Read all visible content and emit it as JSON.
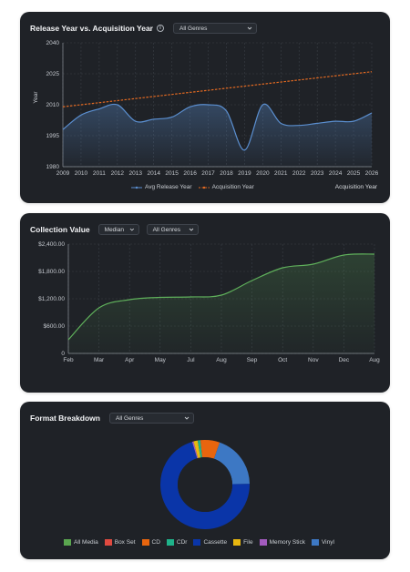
{
  "card1": {
    "title": "Release Year vs. Acquisition Year",
    "genre_select": "All Genres",
    "info_icon": "info-icon",
    "xlabel": "Acquisition Year",
    "ylabel": "Year",
    "legend": [
      "Avg Release Year",
      "Acquisition Year"
    ]
  },
  "card2": {
    "title": "Collection Value",
    "stat_select": "Median",
    "genre_select": "All Genres"
  },
  "card3": {
    "title": "Format Breakdown",
    "genre_select": "All Genres",
    "legend": [
      "All Media",
      "Box Set",
      "CD",
      "CDr",
      "Cassette",
      "File",
      "Memory Stick",
      "Vinyl"
    ]
  },
  "colors": {
    "card_bg": "#1f2227",
    "blue_line": "#5b8fd0",
    "orange_line": "#e36a22",
    "green_line": "#5fb05b",
    "All Media": "#5aa64f",
    "Box Set": "#e04a40",
    "CD": "#e8650e",
    "CDr": "#1fb28a",
    "Cassette": "#0a35a8",
    "File": "#e8b710",
    "Memory Stick": "#a35bbf",
    "Vinyl": "#3d78c4"
  },
  "chart_data": [
    {
      "type": "line",
      "title": "Release Year vs. Acquisition Year",
      "xlabel": "Acquisition Year",
      "ylabel": "Year",
      "x": [
        2009,
        2010,
        2011,
        2012,
        2013,
        2014,
        2015,
        2016,
        2017,
        2018,
        2019,
        2020,
        2021,
        2022,
        2023,
        2024,
        2025,
        2026
      ],
      "xlim": [
        2009,
        2026
      ],
      "ylim": [
        1980,
        2040
      ],
      "yticks": [
        1980,
        1995,
        2010,
        2025,
        2040
      ],
      "grid": true,
      "legend": "bottom",
      "series": [
        {
          "name": "Avg Release Year",
          "style": "solid",
          "area": true,
          "values": [
            1998,
            2005,
            2008,
            2010,
            2002,
            2003,
            2004,
            2009,
            2010,
            2007,
            1988,
            2010,
            2001,
            2000,
            2001,
            2002,
            2002,
            2006
          ]
        },
        {
          "name": "Acquisition Year",
          "style": "dashed",
          "values": [
            2009,
            2010,
            2011,
            2012,
            2013,
            2014,
            2015,
            2016,
            2017,
            2018,
            2019,
            2020,
            2021,
            2022,
            2023,
            2024,
            2025,
            2026
          ]
        }
      ]
    },
    {
      "type": "area",
      "title": "Collection Value",
      "categories": [
        "Feb",
        "Mar",
        "Apr",
        "May",
        "Jul",
        "Aug",
        "Sep",
        "Oct",
        "Nov",
        "Dec",
        "Aug"
      ],
      "ytick_labels": [
        "0",
        "$600.00",
        "$1,200.00",
        "$1,800.00",
        "$2,400.00"
      ],
      "yticks": [
        0,
        600,
        1200,
        1800,
        2400
      ],
      "ylim": [
        0,
        2400
      ],
      "grid": true,
      "series": [
        {
          "values": [
            300,
            1000,
            1180,
            1230,
            1240,
            1280,
            1600,
            1880,
            1960,
            2160,
            2180
          ]
        }
      ]
    },
    {
      "type": "pie",
      "title": "Format Breakdown",
      "donut": true,
      "legend": "bottom",
      "labels": [
        "Cassette",
        "Memory Stick",
        "File",
        "CDr",
        "CD",
        "Vinyl"
      ],
      "values": [
        70.5,
        0.5,
        1.5,
        1,
        7,
        19.5
      ]
    }
  ]
}
